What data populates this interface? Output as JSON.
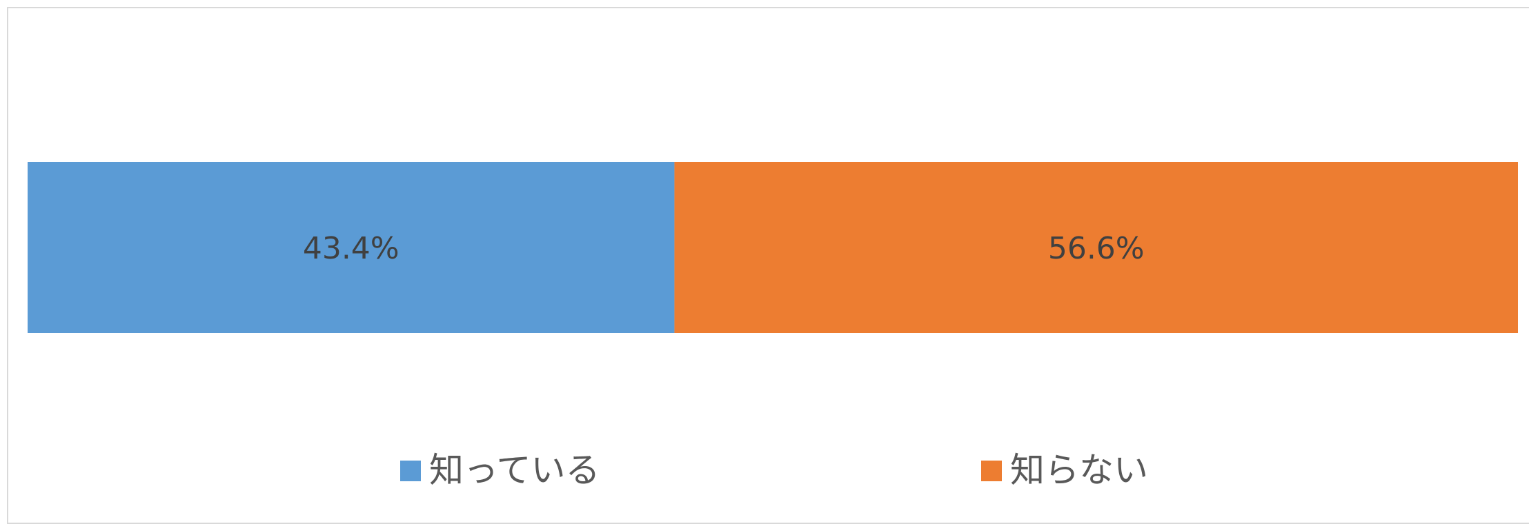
{
  "chart_data": {
    "type": "bar",
    "orientation": "horizontal",
    "stacked": true,
    "percent_stacked": true,
    "categories": [
      ""
    ],
    "series": [
      {
        "name": "知っている",
        "values": [
          43.4
        ],
        "label": "43.4%",
        "color": "#5B9BD5"
      },
      {
        "name": "知らない",
        "values": [
          56.6
        ],
        "label": "56.6%",
        "color": "#ED7D31"
      }
    ],
    "title": "",
    "xlabel": "",
    "ylabel": "",
    "xlim": [
      0,
      100
    ],
    "grid": false,
    "legend": "bottom"
  }
}
